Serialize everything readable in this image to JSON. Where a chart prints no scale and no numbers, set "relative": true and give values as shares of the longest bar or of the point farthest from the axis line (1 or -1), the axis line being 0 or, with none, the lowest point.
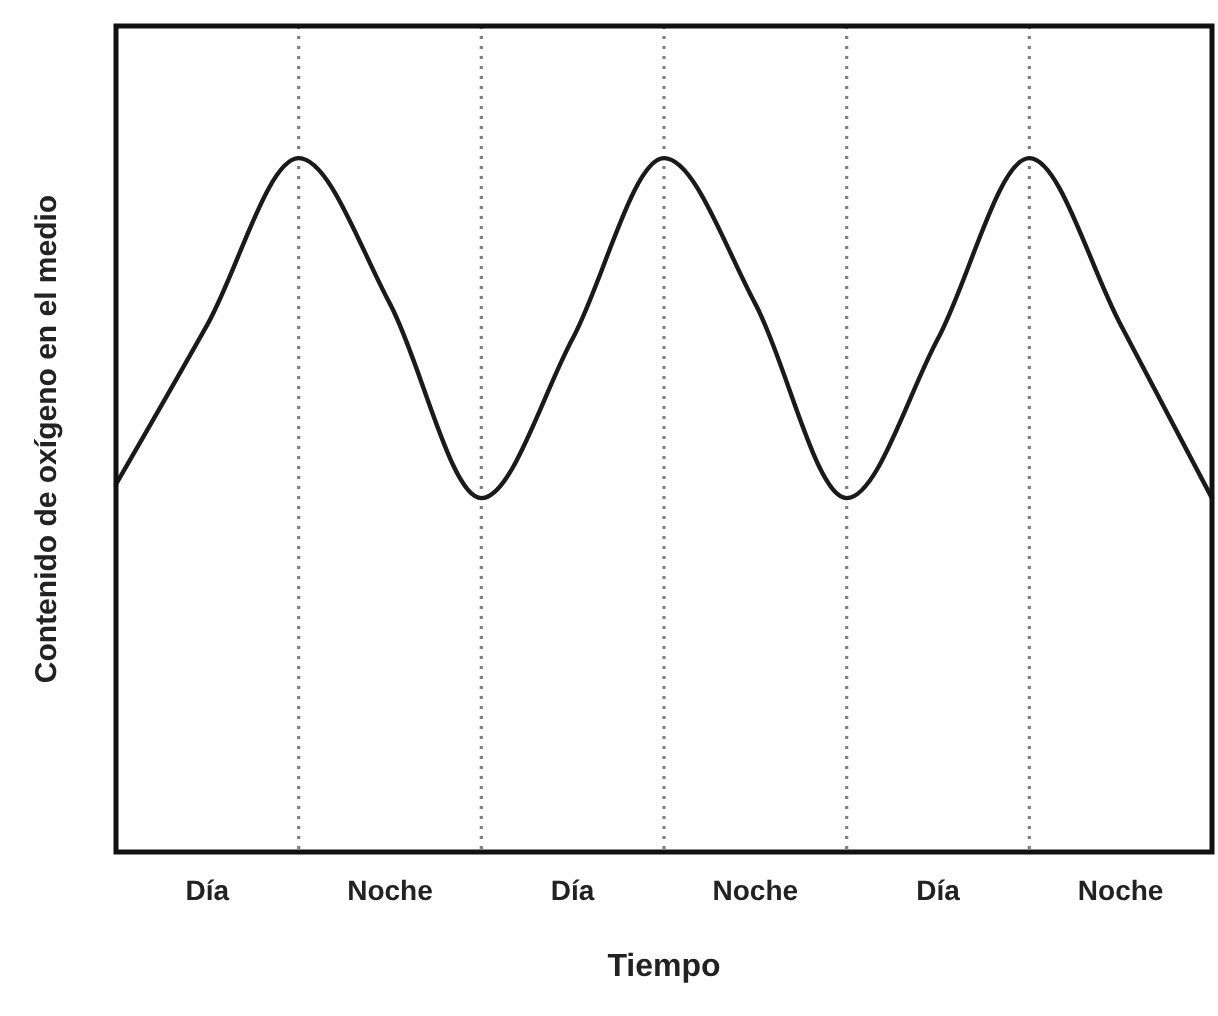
{
  "chart_data": {
    "type": "line",
    "relative": true,
    "xlabel": "Tiempo",
    "ylabel": "Contenido de oxígeno en el medio",
    "categories": [
      null,
      "Día",
      null,
      "Noche",
      null,
      "Día",
      null,
      "Noche",
      null,
      "Día",
      null,
      "Noche",
      null
    ],
    "tick_labels": "x",
    "grid": "x",
    "line_style": "solid",
    "series": [
      {
        "color": "#1a1a1a",
        "values": [
          0.53,
          0.76,
          1,
          0.79,
          0.51,
          0.74,
          1,
          0.79,
          0.51,
          0.74,
          1,
          0.76,
          0.51
        ]
      }
    ]
  }
}
